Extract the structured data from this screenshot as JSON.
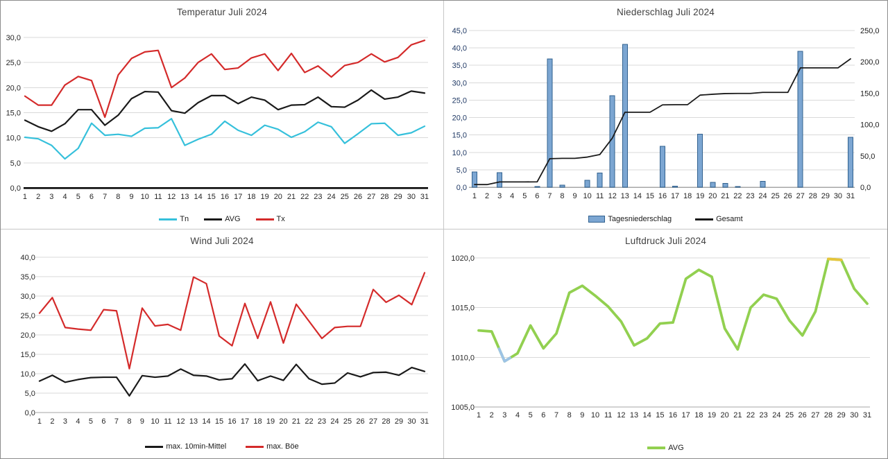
{
  "chart_data": [
    {
      "id": "temperature",
      "type": "line",
      "title": "Temperatur Juli 2024",
      "categories": [
        1,
        2,
        3,
        4,
        5,
        6,
        7,
        8,
        9,
        10,
        11,
        12,
        13,
        14,
        15,
        16,
        17,
        18,
        19,
        20,
        21,
        22,
        23,
        24,
        25,
        26,
        27,
        28,
        29,
        30,
        31
      ],
      "y_axis": {
        "min": 0,
        "max": 30,
        "step": 5
      },
      "grid": true,
      "legend_position": "bottom",
      "series": [
        {
          "name": "Tn",
          "color": "#35c0db",
          "values": [
            10.1,
            9.8,
            8.5,
            5.8,
            7.9,
            12.9,
            10.5,
            10.7,
            10.3,
            11.9,
            12.0,
            13.8,
            8.5,
            9.7,
            10.7,
            13.3,
            11.5,
            10.5,
            12.5,
            11.7,
            10.1,
            11.2,
            13.1,
            12.2,
            8.9,
            10.8,
            12.8,
            12.9,
            10.5,
            11.0,
            12.3
          ]
        },
        {
          "name": "AVG",
          "color": "#1a1a1a",
          "values": [
            13.5,
            12.2,
            11.3,
            12.8,
            15.6,
            15.6,
            12.5,
            14.5,
            17.8,
            19.2,
            19.1,
            15.4,
            14.9,
            17.0,
            18.4,
            18.4,
            16.8,
            18.1,
            17.5,
            15.6,
            16.5,
            16.6,
            18.1,
            16.2,
            16.1,
            17.5,
            19.5,
            17.7,
            18.1,
            19.3,
            18.9
          ]
        },
        {
          "name": "Tx",
          "color": "#d42a2a",
          "values": [
            18.3,
            16.5,
            16.5,
            20.5,
            22.2,
            21.4,
            14.1,
            22.5,
            25.8,
            27.1,
            27.4,
            20.0,
            21.9,
            25.0,
            26.7,
            23.6,
            23.9,
            25.9,
            26.7,
            23.4,
            26.8,
            23.0,
            24.3,
            22.1,
            24.4,
            25.0,
            26.7,
            25.1,
            26.0,
            28.5,
            29.4
          ]
        }
      ]
    },
    {
      "id": "precipitation",
      "type": "bar+line",
      "title": "Niederschlag Juli 2024",
      "categories": [
        1,
        2,
        3,
        4,
        5,
        6,
        7,
        8,
        9,
        10,
        11,
        12,
        13,
        14,
        15,
        16,
        17,
        18,
        19,
        20,
        21,
        22,
        23,
        24,
        25,
        26,
        27,
        28,
        29,
        30,
        31
      ],
      "left_axis": {
        "min": 0,
        "max": 45,
        "step": 5,
        "color": "#1f3864"
      },
      "right_axis": {
        "min": 0,
        "max": 250,
        "step": 50,
        "color": "#1a1a1a"
      },
      "grid": true,
      "legend_position": "bottom",
      "bar_series": {
        "name": "Tagesniederschlag",
        "fill": "#7ca6d2",
        "border": "#31618f",
        "values": [
          4.4,
          0,
          4.2,
          0,
          0,
          0.2,
          36.8,
          0.6,
          0,
          2.0,
          4.1,
          26.3,
          41.0,
          0,
          0,
          11.8,
          0.3,
          0,
          15.2,
          1.4,
          1.1,
          0.2,
          0,
          1.7,
          0,
          0,
          39.0,
          0,
          0,
          0,
          14.4
        ]
      },
      "line_series": {
        "name": "Gesamt",
        "color": "#1a1a1a",
        "axis": "right",
        "values": [
          4.4,
          4.4,
          8.6,
          8.6,
          8.6,
          8.8,
          45.6,
          46.2,
          46.2,
          48.2,
          52.3,
          78.6,
          119.6,
          119.6,
          119.6,
          131.4,
          131.7,
          131.7,
          146.9,
          148.3,
          149.4,
          149.6,
          149.6,
          151.3,
          151.3,
          151.3,
          190.3,
          190.3,
          190.3,
          190.3,
          204.7
        ]
      }
    },
    {
      "id": "wind",
      "type": "line",
      "title": "Wind Juli 2024",
      "categories": [
        1,
        2,
        3,
        4,
        5,
        6,
        7,
        8,
        9,
        10,
        11,
        12,
        13,
        14,
        15,
        16,
        17,
        18,
        19,
        20,
        21,
        22,
        23,
        24,
        25,
        26,
        27,
        28,
        29,
        30,
        31
      ],
      "y_axis": {
        "min": 0,
        "max": 40,
        "step": 5
      },
      "grid": true,
      "legend_position": "bottom",
      "series": [
        {
          "name": "max. 10min-Mittel",
          "color": "#1a1a1a",
          "values": [
            8.1,
            9.6,
            7.8,
            8.5,
            9.0,
            9.1,
            9.1,
            4.3,
            9.5,
            9.1,
            9.4,
            11.2,
            9.6,
            9.4,
            8.4,
            8.7,
            12.5,
            8.2,
            9.4,
            8.3,
            12.4,
            8.7,
            7.3,
            7.6,
            10.2,
            9.2,
            10.3,
            10.4,
            9.6,
            11.6,
            10.6
          ]
        },
        {
          "name": "max. Böe",
          "color": "#d42a2a",
          "values": [
            25.6,
            29.6,
            21.9,
            21.5,
            21.2,
            26.5,
            26.2,
            11.3,
            26.9,
            22.3,
            22.7,
            21.2,
            34.9,
            33.2,
            19.7,
            17.2,
            28.1,
            19.1,
            28.5,
            17.9,
            27.9,
            23.5,
            19.1,
            21.9,
            22.2,
            22.2,
            31.7,
            28.4,
            30.2,
            27.8,
            36.0
          ]
        }
      ]
    },
    {
      "id": "pressure",
      "type": "line",
      "title": "Luftdruck Juli 2024",
      "categories": [
        1,
        2,
        3,
        4,
        5,
        6,
        7,
        8,
        9,
        10,
        11,
        12,
        13,
        14,
        15,
        16,
        17,
        18,
        19,
        20,
        21,
        22,
        23,
        24,
        25,
        26,
        27,
        28,
        29,
        30,
        31
      ],
      "y_axis": {
        "min": 1005,
        "max": 1020,
        "step": 5
      },
      "grid": true,
      "legend_position": "bottom",
      "series": [
        {
          "name": "AVG",
          "color": "#92d050",
          "values": [
            1012.7,
            1012.6,
            1009.6,
            1010.4,
            1013.2,
            1010.9,
            1012.4,
            1016.5,
            1017.2,
            1016.2,
            1015.1,
            1013.6,
            1011.2,
            1011.9,
            1013.4,
            1013.5,
            1017.9,
            1018.8,
            1018.1,
            1012.9,
            1010.8,
            1015.0,
            1016.3,
            1015.9,
            1013.7,
            1012.2,
            1014.6,
            1019.9,
            1019.8,
            1016.9,
            1015.4
          ]
        }
      ],
      "highlights": {
        "min": {
          "day": 3,
          "color": "#9dc3e6"
        },
        "max": {
          "from_day": 28,
          "to_day": 29,
          "color": "#e6c53c"
        }
      }
    }
  ]
}
